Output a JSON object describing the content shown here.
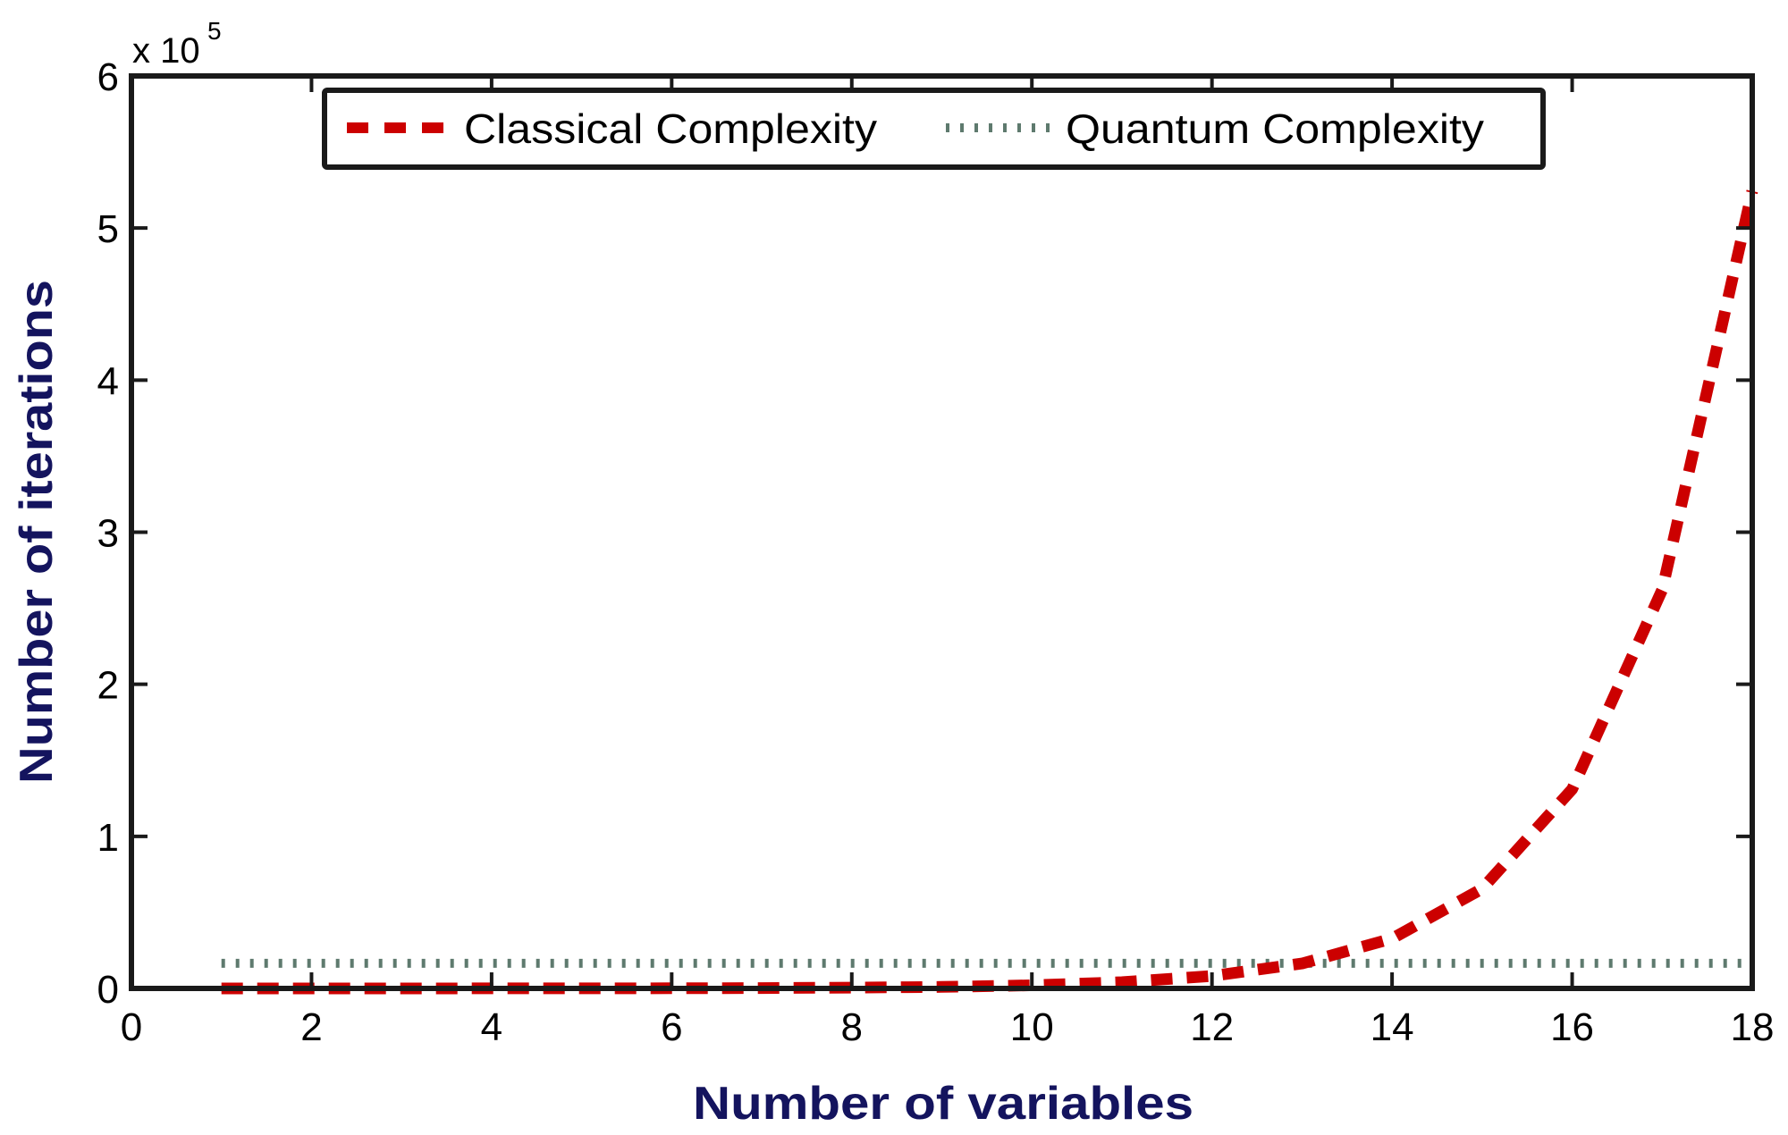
{
  "chart_data": {
    "type": "line",
    "title": "",
    "xlabel": "Number of variables",
    "ylabel": "Number of iterations",
    "y_multiplier_label": "x 10",
    "y_multiplier_exponent": "5",
    "xlim": [
      0,
      18
    ],
    "ylim": [
      0,
      6
    ],
    "y_scale_factor": 100000,
    "xticks": [
      0,
      2,
      4,
      6,
      8,
      10,
      12,
      14,
      16,
      18
    ],
    "yticks": [
      0,
      1,
      2,
      3,
      4,
      5,
      6
    ],
    "grid": false,
    "legend_position": "top-center",
    "x": [
      1,
      2,
      3,
      4,
      5,
      6,
      7,
      8,
      9,
      10,
      11,
      12,
      13,
      14,
      15,
      16,
      17,
      18
    ],
    "series": [
      {
        "name": "Classical Complexity",
        "style": "dashed",
        "color": "#cc0000",
        "values": [
          4,
          8,
          16,
          32,
          64,
          128,
          256,
          512,
          1024,
          2048,
          4096,
          8192,
          16384,
          32768,
          65536,
          131072,
          262144,
          524288
        ]
      },
      {
        "name": "Quantum Complexity",
        "style": "dotted",
        "color": "#5e7a6e",
        "values": [
          16500,
          16500,
          16500,
          16500,
          16500,
          16500,
          16500,
          16500,
          16500,
          16500,
          16500,
          16500,
          16500,
          16500,
          16500,
          16500,
          16500,
          16500
        ]
      }
    ]
  },
  "legend": {
    "items": [
      {
        "label": "Classical Complexity",
        "color": "#cc0000",
        "style": "dashed"
      },
      {
        "label": "Quantum Complexity",
        "color": "#5e7a6e",
        "style": "dotted"
      }
    ]
  },
  "colors": {
    "axis": "#1a1a1a",
    "axis_title": "#14145e",
    "background": "#ffffff"
  }
}
